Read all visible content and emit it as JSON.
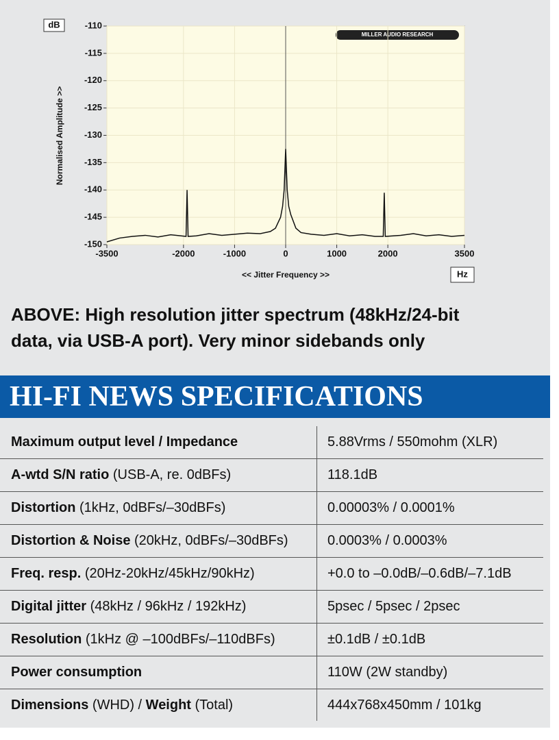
{
  "chart_data": {
    "type": "line",
    "unit_label_y": "dB",
    "unit_label_x": "Hz",
    "ylabel": "Normalised Amplitude >>",
    "xlabel": "<< Jitter Frequency >>",
    "logo": "MILLER AUDIO RESEARCH",
    "xlim": [
      -3500,
      3500
    ],
    "ylim": [
      -150,
      -110
    ],
    "xticks": [
      -3500,
      -2000,
      -1000,
      0,
      1000,
      2000,
      3500
    ],
    "yticks": [
      -110,
      -115,
      -120,
      -125,
      -130,
      -135,
      -140,
      -145,
      -150
    ],
    "grid": true,
    "x": [
      -3500,
      -3250,
      -3000,
      -2750,
      -2500,
      -2250,
      -1950,
      -1930,
      -1910,
      -1750,
      -1500,
      -1250,
      -1000,
      -750,
      -500,
      -300,
      -200,
      -100,
      -60,
      -30,
      0,
      30,
      60,
      100,
      200,
      300,
      500,
      750,
      1000,
      1250,
      1500,
      1750,
      1910,
      1930,
      1950,
      2250,
      2500,
      2750,
      3000,
      3250,
      3500
    ],
    "series": [
      {
        "color": "#111111",
        "values": [
          -149.5,
          -148.8,
          -148.5,
          -148.3,
          -148.6,
          -148.2,
          -148.5,
          -140,
          -148.5,
          -148.4,
          -148,
          -148.3,
          -148.1,
          -147.9,
          -148,
          -147.6,
          -147,
          -145,
          -143,
          -140,
          -132.5,
          -140,
          -143,
          -144.5,
          -147,
          -147.8,
          -148.1,
          -148.3,
          -148,
          -148.4,
          -148.2,
          -148.5,
          -148.5,
          -140.5,
          -148.5,
          -148.3,
          -148,
          -148.4,
          -148.2,
          -148.5,
          -148.3
        ]
      }
    ]
  },
  "caption": [
    "ABOVE: High resolution jitter spectrum (48kHz/24-bit",
    "data, via USB-A port). Very minor sidebands only"
  ],
  "banner": "HI-FI NEWS SPECIFICATIONS",
  "table": {
    "rows": [
      [
        [
          {
            "text": "Maximum output level / Impedance",
            "bold": true
          }
        ],
        "5.88Vrms / 550mohm (XLR)"
      ],
      [
        [
          {
            "text": "A-wtd S/N ratio",
            "bold": true
          },
          {
            "text": " (USB-A, re. 0dBFs)",
            "bold": false
          }
        ],
        "118.1dB"
      ],
      [
        [
          {
            "text": "Distortion",
            "bold": true
          },
          {
            "text": " (1kHz, 0dBFs/–30dBFs)",
            "bold": false
          }
        ],
        "0.00003% / 0.0001%"
      ],
      [
        [
          {
            "text": "Distortion & Noise",
            "bold": true
          },
          {
            "text": " (20kHz, 0dBFs/–30dBFs)",
            "bold": false
          }
        ],
        "0.0003% / 0.0003%"
      ],
      [
        [
          {
            "text": "Freq. resp.",
            "bold": true
          },
          {
            "text": " (20Hz-20kHz/45kHz/90kHz)",
            "bold": false
          }
        ],
        "+0.0 to –0.0dB/–0.6dB/–7.1dB"
      ],
      [
        [
          {
            "text": "Digital jitter",
            "bold": true
          },
          {
            "text": " (48kHz / 96kHz / 192kHz)",
            "bold": false
          }
        ],
        "5psec / 5psec / 2psec"
      ],
      [
        [
          {
            "text": "Resolution",
            "bold": true
          },
          {
            "text": " (1kHz @ –100dBFs/–110dBFs)",
            "bold": false
          }
        ],
        "±0.1dB / ±0.1dB"
      ],
      [
        [
          {
            "text": "Power consumption",
            "bold": true
          }
        ],
        "110W (2W standby)"
      ],
      [
        [
          {
            "text": "Dimensions",
            "bold": true
          },
          {
            "text": " (WHD) / ",
            "bold": false
          },
          {
            "text": "Weight",
            "bold": true
          },
          {
            "text": " (Total)",
            "bold": false
          }
        ],
        "444x768x450mm / 101kg"
      ]
    ]
  }
}
